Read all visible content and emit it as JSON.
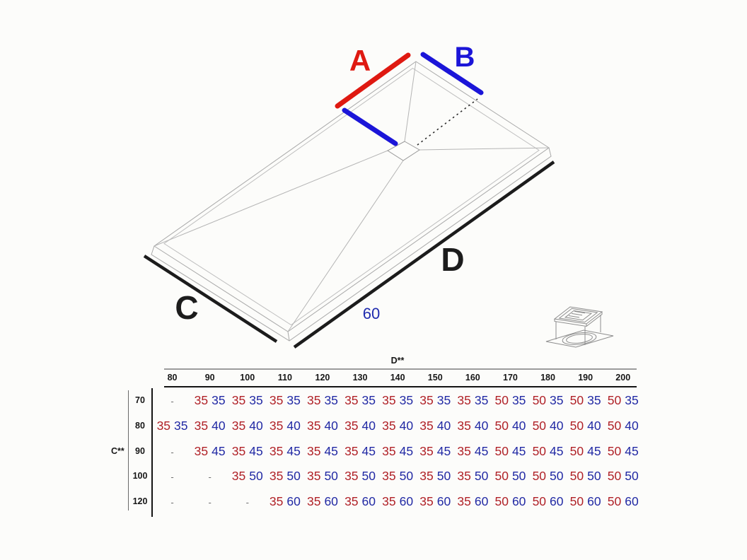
{
  "diagram": {
    "labels": {
      "a": "A",
      "b": "B",
      "c": "C",
      "d": "D",
      "drain_offset": "60"
    },
    "colors": {
      "red": "#df1911",
      "blue": "#1b15d8",
      "blue_soft": "#1f2bae",
      "black": "#1c1c1c"
    }
  },
  "table": {
    "col_axis_label": "D**",
    "row_axis_label": "C**",
    "empty_cell": "-",
    "columns": [
      "80",
      "90",
      "100",
      "110",
      "120",
      "130",
      "140",
      "150",
      "160",
      "170",
      "180",
      "190",
      "200"
    ],
    "rows": [
      {
        "label": "70",
        "cells": [
          "-",
          [
            35,
            35
          ],
          [
            35,
            35
          ],
          [
            35,
            35
          ],
          [
            35,
            35
          ],
          [
            35,
            35
          ],
          [
            35,
            35
          ],
          [
            35,
            35
          ],
          [
            35,
            35
          ],
          [
            50,
            35
          ],
          [
            50,
            35
          ],
          [
            50,
            35
          ],
          [
            50,
            35
          ]
        ]
      },
      {
        "label": "80",
        "cells": [
          [
            35,
            35
          ],
          [
            35,
            40
          ],
          [
            35,
            40
          ],
          [
            35,
            40
          ],
          [
            35,
            40
          ],
          [
            35,
            40
          ],
          [
            35,
            40
          ],
          [
            35,
            40
          ],
          [
            35,
            40
          ],
          [
            50,
            40
          ],
          [
            50,
            40
          ],
          [
            50,
            40
          ],
          [
            50,
            40
          ]
        ]
      },
      {
        "label": "90",
        "cells": [
          "-",
          [
            35,
            45
          ],
          [
            35,
            45
          ],
          [
            35,
            45
          ],
          [
            35,
            45
          ],
          [
            35,
            45
          ],
          [
            35,
            45
          ],
          [
            35,
            45
          ],
          [
            35,
            45
          ],
          [
            50,
            45
          ],
          [
            50,
            45
          ],
          [
            50,
            45
          ],
          [
            50,
            45
          ]
        ]
      },
      {
        "label": "100",
        "cells": [
          "-",
          "-",
          [
            35,
            50
          ],
          [
            35,
            50
          ],
          [
            35,
            50
          ],
          [
            35,
            50
          ],
          [
            35,
            50
          ],
          [
            35,
            50
          ],
          [
            35,
            50
          ],
          [
            50,
            50
          ],
          [
            50,
            50
          ],
          [
            50,
            50
          ],
          [
            50,
            50
          ]
        ]
      },
      {
        "label": "120",
        "cells": [
          "-",
          "-",
          "-",
          [
            35,
            60
          ],
          [
            35,
            60
          ],
          [
            35,
            60
          ],
          [
            35,
            60
          ],
          [
            35,
            60
          ],
          [
            35,
            60
          ],
          [
            50,
            60
          ],
          [
            50,
            60
          ],
          [
            50,
            60
          ],
          [
            50,
            60
          ]
        ]
      }
    ],
    "colors": {
      "first": "#b02127",
      "second": "#2129a4"
    }
  }
}
